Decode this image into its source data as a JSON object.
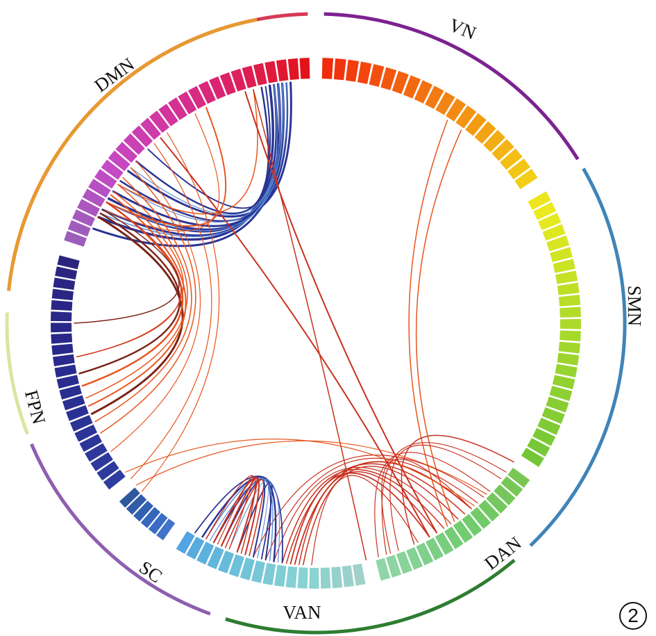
{
  "badge": "2",
  "networks": [
    {
      "id": "DMN",
      "label": "DMN",
      "arc_color": "#d63a56"
    },
    {
      "id": "VN",
      "label": "VN",
      "arc_color": "#7b2390"
    },
    {
      "id": "SMN",
      "label": "SMN",
      "arc_color": "#3f84b8"
    },
    {
      "id": "DAN",
      "label": "DAN",
      "arc_color": "#2e7d32"
    },
    {
      "id": "VAN",
      "label": "VAN",
      "arc_color": "#8e5fb0"
    },
    {
      "id": "SC",
      "label": "SC",
      "arc_color": "#d9e6a0"
    },
    {
      "id": "FPN",
      "label": "FPN",
      "arc_color": "#e79a2e"
    }
  ],
  "link_colors": {
    "positive": "#e8541c",
    "strong_positive": "#c8301e",
    "dark_positive": "#7a2418",
    "negative": "#2a3494",
    "light_negative": "#5b8fd6"
  }
}
